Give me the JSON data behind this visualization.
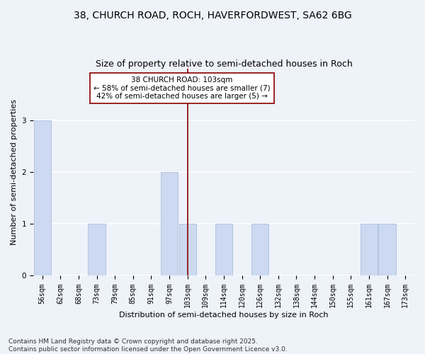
{
  "title": "38, CHURCH ROAD, ROCH, HAVERFORDWEST, SA62 6BG",
  "subtitle": "Size of property relative to semi-detached houses in Roch",
  "xlabel": "Distribution of semi-detached houses by size in Roch",
  "ylabel": "Number of semi-detached properties",
  "bins": [
    "56sqm",
    "62sqm",
    "68sqm",
    "73sqm",
    "79sqm",
    "85sqm",
    "91sqm",
    "97sqm",
    "103sqm",
    "109sqm",
    "114sqm",
    "120sqm",
    "126sqm",
    "132sqm",
    "138sqm",
    "144sqm",
    "150sqm",
    "155sqm",
    "161sqm",
    "167sqm",
    "173sqm"
  ],
  "values": [
    3,
    0,
    0,
    1,
    0,
    0,
    0,
    2,
    1,
    0,
    1,
    0,
    1,
    0,
    0,
    0,
    0,
    0,
    1,
    1,
    0
  ],
  "bar_color": "#ccd9f0",
  "bar_edge_color": "#a0b8d8",
  "vline_bin_index": 8,
  "vline_color": "#8b0000",
  "annotation_text": "38 CHURCH ROAD: 103sqm\n← 58% of semi-detached houses are smaller (7)\n42% of semi-detached houses are larger (5) →",
  "annotation_box_color": "#ffffff",
  "annotation_box_edge": "#8b0000",
  "ylim": [
    0,
    4
  ],
  "yticks": [
    0,
    1,
    2,
    3
  ],
  "footnote": "Contains HM Land Registry data © Crown copyright and database right 2025.\nContains public sector information licensed under the Open Government Licence v3.0.",
  "background_color": "#eef2f9",
  "grid_color": "#ffffff",
  "title_fontsize": 10,
  "subtitle_fontsize": 9,
  "axis_label_fontsize": 8,
  "tick_fontsize": 7,
  "annotation_fontsize": 7.5,
  "footnote_fontsize": 6.5
}
